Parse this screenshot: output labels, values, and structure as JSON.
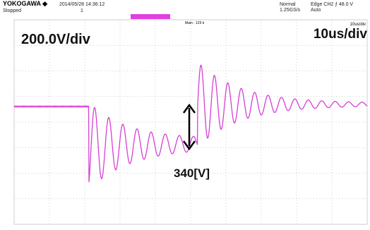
{
  "header": {
    "brand": "YOKOGAWA ◆",
    "status": "Stopped",
    "timestamp": "2014/05/28 14:36:12",
    "count": "1",
    "mode": "Normal",
    "sample_rate": "1.25GS/s",
    "trigger": "Edge CH2 ⨍ 48.0 V",
    "trigger_mode": "Auto"
  },
  "screen": {
    "main_label": "Main : 125 k",
    "timebase_small": "10us/div"
  },
  "annotations": {
    "volts_per_div": "200.0V/div",
    "time_per_div": "10us/div",
    "step": "340[V]"
  }
}
